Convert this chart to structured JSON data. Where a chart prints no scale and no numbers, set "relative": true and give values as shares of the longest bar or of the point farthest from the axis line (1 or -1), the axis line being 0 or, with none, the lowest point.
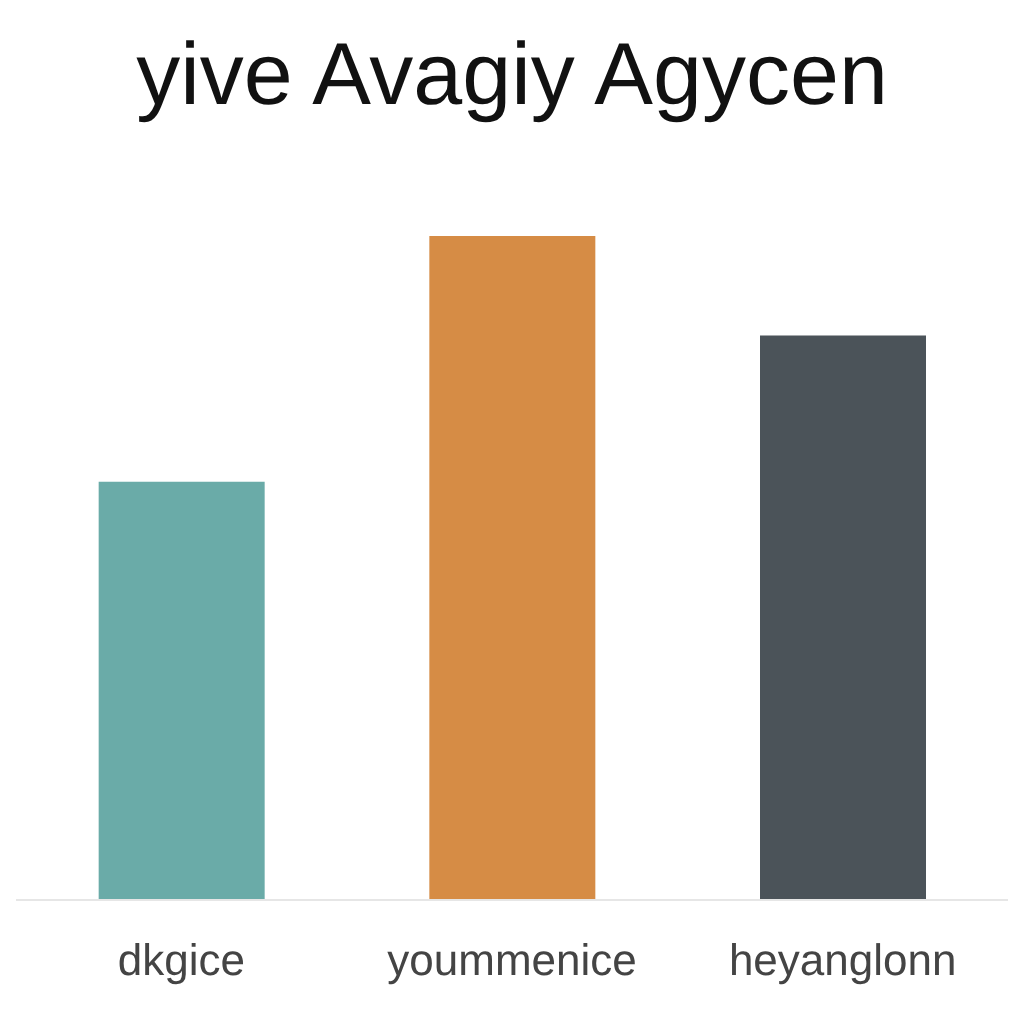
{
  "chart_data": {
    "type": "bar",
    "title": "yive Avagiy Agycen",
    "relative": true,
    "categories": [
      "dkgice",
      "yoummenice",
      "heyanglonn"
    ],
    "values": [
      0.63,
      1,
      0.85
    ],
    "colors": [
      "#6aaba8",
      "#d68c45",
      "#4b5359"
    ],
    "grid": false,
    "legend": false
  }
}
